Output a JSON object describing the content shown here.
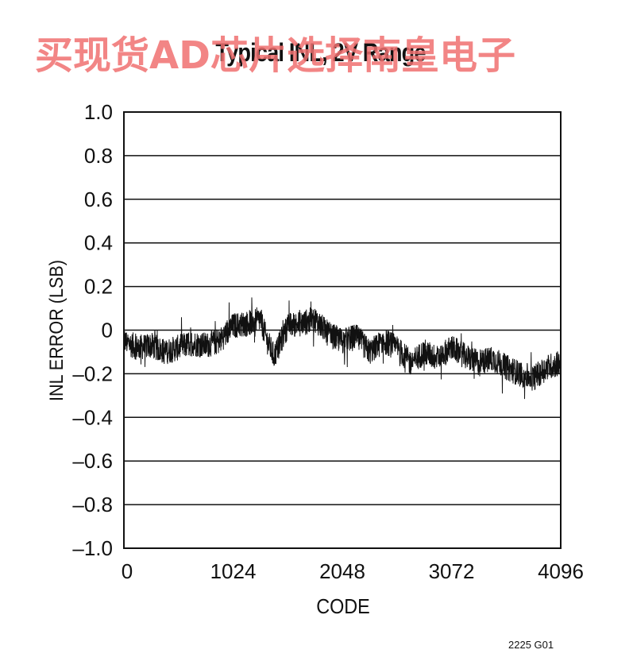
{
  "chart_data": {
    "type": "line",
    "title": "Typical INL, 2V Range",
    "xlabel": "CODE",
    "ylabel": "INL ERROR (LSB)",
    "xlim": [
      0,
      4096
    ],
    "ylim": [
      -1.0,
      1.0
    ],
    "xticks": [
      0,
      1024,
      2048,
      3072,
      4096
    ],
    "xtick_labels": [
      "0",
      "1024",
      "2048",
      "3072",
      "4096"
    ],
    "yticks": [
      1.0,
      0.8,
      0.6,
      0.4,
      0.2,
      0,
      -0.2,
      -0.4,
      -0.6,
      -0.8,
      -1.0
    ],
    "ytick_labels": [
      "1.0",
      "0.8",
      "0.6",
      "0.4",
      "0.2",
      "0",
      "–0.2",
      "–0.4",
      "–0.6",
      "–0.8",
      "–1.0"
    ],
    "grid": "horizontal",
    "series": [
      {
        "color": "#111111",
        "x": [
          0,
          128,
          256,
          384,
          512,
          640,
          768,
          896,
          1024,
          1152,
          1280,
          1344,
          1408,
          1536,
          1664,
          1792,
          1920,
          2048,
          2176,
          2304,
          2432,
          2560,
          2688,
          2816,
          2944,
          3072,
          3200,
          3328,
          3456,
          3584,
          3712,
          3840,
          3968,
          4096
        ],
        "y": [
          -0.05,
          -0.08,
          -0.07,
          -0.1,
          -0.08,
          -0.06,
          -0.07,
          -0.05,
          0.02,
          0.03,
          0.05,
          -0.05,
          -0.12,
          0.02,
          0.03,
          0.05,
          -0.02,
          -0.05,
          -0.03,
          -0.1,
          -0.05,
          -0.08,
          -0.15,
          -0.1,
          -0.13,
          -0.08,
          -0.12,
          -0.15,
          -0.13,
          -0.17,
          -0.2,
          -0.22,
          -0.17,
          -0.15
        ]
      }
    ]
  },
  "watermark": "买现货AD芯片选择南皇电子",
  "figure_id": "2225 G01"
}
